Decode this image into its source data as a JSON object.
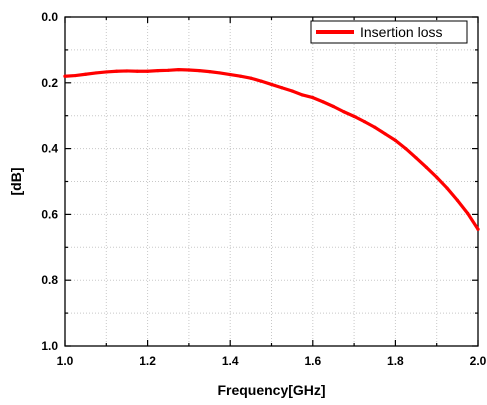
{
  "chart_data": {
    "type": "line",
    "title": "",
    "xlabel": "Frequency[GHz]",
    "ylabel": "[dB]",
    "xlim": [
      1.0,
      2.0
    ],
    "ylim": [
      0.0,
      1.0
    ],
    "y_inverted": true,
    "grid": true,
    "legend_position": "top-right",
    "x_ticks": [
      "1.0",
      "1.2",
      "1.4",
      "1.6",
      "1.8",
      "2.0"
    ],
    "y_ticks": [
      "0.0",
      "0.2",
      "0.4",
      "0.6",
      "0.8",
      "1.0"
    ],
    "series": [
      {
        "name": "Insertion loss",
        "color": "#ff0000",
        "x": [
          1.0,
          1.025,
          1.05,
          1.075,
          1.1,
          1.125,
          1.15,
          1.175,
          1.2,
          1.225,
          1.25,
          1.275,
          1.3,
          1.325,
          1.35,
          1.375,
          1.4,
          1.425,
          1.45,
          1.475,
          1.5,
          1.525,
          1.55,
          1.575,
          1.6,
          1.625,
          1.65,
          1.675,
          1.7,
          1.725,
          1.75,
          1.775,
          1.8,
          1.825,
          1.85,
          1.875,
          1.9,
          1.925,
          1.95,
          1.975,
          2.0
        ],
        "y": [
          0.18,
          0.178,
          0.174,
          0.17,
          0.167,
          0.165,
          0.164,
          0.165,
          0.165,
          0.163,
          0.162,
          0.16,
          0.161,
          0.163,
          0.166,
          0.17,
          0.175,
          0.18,
          0.186,
          0.195,
          0.205,
          0.215,
          0.225,
          0.237,
          0.245,
          0.258,
          0.272,
          0.288,
          0.302,
          0.318,
          0.335,
          0.355,
          0.375,
          0.4,
          0.428,
          0.457,
          0.487,
          0.52,
          0.557,
          0.597,
          0.645
        ]
      }
    ]
  }
}
